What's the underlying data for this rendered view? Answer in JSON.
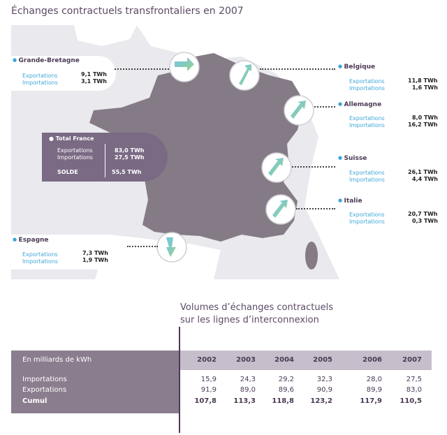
{
  "title": "Échanges contractuels transfrontaliers en 2007",
  "countries": [
    {
      "name": "Grande-Bretagne",
      "exp_label": "Exportations",
      "imp_label": "Importations",
      "exp": "9,1 TWh",
      "imp": "3,1 TWh"
    },
    {
      "name": "Belgique",
      "exp_label": "Exportations",
      "imp_label": "Importations",
      "exp": "11,8 TWh",
      "imp": "1,6 TWh"
    },
    {
      "name": "Allemagne",
      "exp_label": "Exportations",
      "imp_label": "Importations",
      "exp": "8,0 TWh",
      "imp": "16,2 TWh"
    },
    {
      "name": "Suisse",
      "exp_label": "Exportations",
      "imp_label": "Importations",
      "exp": "26,1 TWh",
      "imp": "4,4 TWh"
    },
    {
      "name": "Italie",
      "exp_label": "Exportations",
      "imp_label": "Importations",
      "exp": "20,7 TWh",
      "imp": "0,3 TWh"
    },
    {
      "name": "Espagne",
      "exp_label": "Exportations",
      "imp_label": "Importations",
      "exp": "7,3 TWh",
      "imp": "1,9 TWh"
    }
  ],
  "total_france": {
    "title": "Total France",
    "exp_label": "Exportations",
    "imp_label": "Importations",
    "exp": "83,0 TWh",
    "imp": "27,5 TWh",
    "solde_label": "SOLDE",
    "solde": "55,5 TWh"
  },
  "volumes": {
    "title_line1": "Volumes d’échanges contractuels",
    "title_line2": "sur les lignes d’interconnexion",
    "unit": "En milliards de kWh",
    "years": [
      "2002",
      "2003",
      "2004",
      "2005",
      "2006",
      "2007"
    ],
    "rows": [
      {
        "label": "Importations",
        "values": [
          "15,9",
          "24,3",
          "29,2",
          "32,3",
          "28,0",
          "27,5"
        ]
      },
      {
        "label": "Exportations",
        "values": [
          "91,9",
          "89,0",
          "89,6",
          "90,9",
          "89,9",
          "83,0"
        ]
      },
      {
        "label": "Cumul",
        "values": [
          "107,8",
          "113,3",
          "118,8",
          "123,2",
          "117,9",
          "110,5"
        ]
      }
    ]
  },
  "colors": {
    "accent": "#3ea6d8",
    "brand": "#5d4a66",
    "france": "#857b86",
    "neighbors": "#ffffff"
  }
}
